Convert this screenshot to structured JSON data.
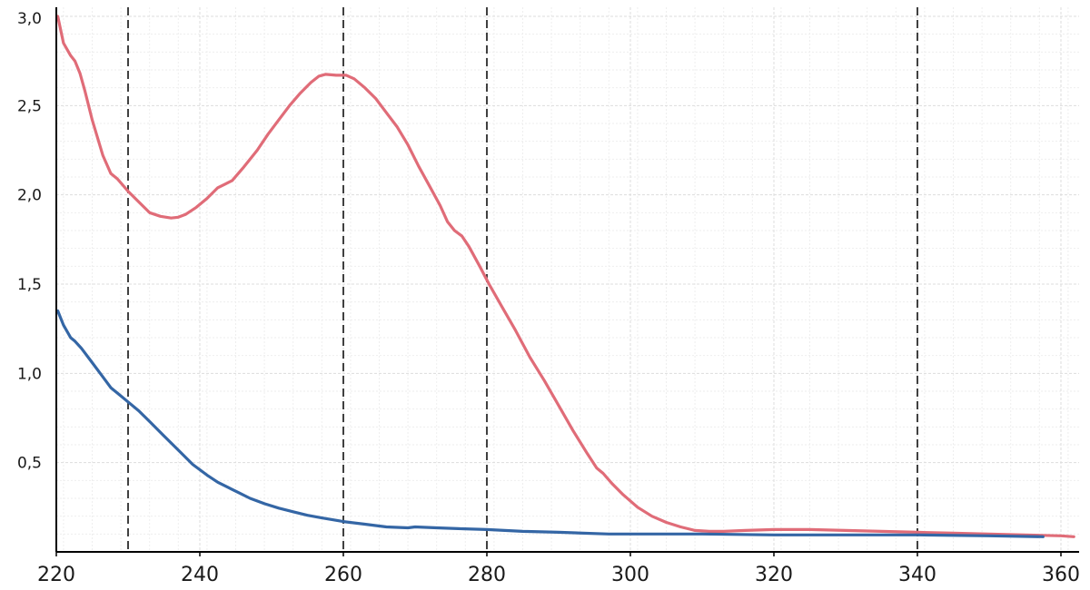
{
  "chart_data": {
    "type": "line",
    "xlim": [
      220,
      360
    ],
    "ylim": [
      0,
      3.0
    ],
    "x_ticks": [
      {
        "value": 220,
        "label": "220"
      },
      {
        "value": 240,
        "label": "240"
      },
      {
        "value": 260,
        "label": "260"
      },
      {
        "value": 280,
        "label": "280"
      },
      {
        "value": 300,
        "label": "300"
      },
      {
        "value": 320,
        "label": "320"
      },
      {
        "value": 340,
        "label": "340"
      },
      {
        "value": 360,
        "label": "360"
      }
    ],
    "y_ticks": [
      {
        "value": 0.5,
        "label": "0,5"
      },
      {
        "value": 1.0,
        "label": "1,0"
      },
      {
        "value": 1.5,
        "label": "1,5"
      },
      {
        "value": 2.0,
        "label": "2,0"
      },
      {
        "value": 2.5,
        "label": "2,5"
      },
      {
        "value": 3.0,
        "label": "3,0"
      }
    ],
    "grid": true,
    "reference_lines_x": [
      230,
      260,
      280,
      340
    ],
    "series": [
      {
        "color": "#e06c78",
        "points": [
          [
            220.2,
            3.0
          ],
          [
            221,
            2.85
          ],
          [
            222,
            2.78
          ],
          [
            222.6,
            2.75
          ],
          [
            223.3,
            2.68
          ],
          [
            224,
            2.58
          ],
          [
            225,
            2.42
          ],
          [
            226.5,
            2.22
          ],
          [
            227.6,
            2.12
          ],
          [
            228.5,
            2.09
          ],
          [
            230,
            2.02
          ],
          [
            231.5,
            1.96
          ],
          [
            233,
            1.9
          ],
          [
            234.5,
            1.88
          ],
          [
            236,
            1.87
          ],
          [
            237,
            1.875
          ],
          [
            238,
            1.89
          ],
          [
            239.5,
            1.93
          ],
          [
            241,
            1.98
          ],
          [
            242.5,
            2.04
          ],
          [
            243.5,
            2.06
          ],
          [
            244.5,
            2.08
          ],
          [
            246,
            2.15
          ],
          [
            248,
            2.25
          ],
          [
            249.5,
            2.34
          ],
          [
            251,
            2.42
          ],
          [
            252.5,
            2.5
          ],
          [
            254,
            2.57
          ],
          [
            255.5,
            2.63
          ],
          [
            256.6,
            2.665
          ],
          [
            257.5,
            2.675
          ],
          [
            259,
            2.67
          ],
          [
            260.4,
            2.67
          ],
          [
            261.5,
            2.65
          ],
          [
            263,
            2.6
          ],
          [
            264.5,
            2.54
          ],
          [
            266,
            2.46
          ],
          [
            267.5,
            2.38
          ],
          [
            269,
            2.28
          ],
          [
            270.5,
            2.16
          ],
          [
            272,
            2.05
          ],
          [
            273.5,
            1.94
          ],
          [
            274.5,
            1.85
          ],
          [
            275.5,
            1.8
          ],
          [
            276.5,
            1.77
          ],
          [
            277.5,
            1.71
          ],
          [
            279,
            1.6
          ],
          [
            280.3,
            1.5
          ],
          [
            282,
            1.38
          ],
          [
            284,
            1.24
          ],
          [
            286,
            1.09
          ],
          [
            288,
            0.96
          ],
          [
            290,
            0.82
          ],
          [
            292,
            0.68
          ],
          [
            294,
            0.55
          ],
          [
            295.3,
            0.47
          ],
          [
            296.2,
            0.44
          ],
          [
            297.5,
            0.38
          ],
          [
            299,
            0.32
          ],
          [
            301,
            0.25
          ],
          [
            303,
            0.2
          ],
          [
            305,
            0.165
          ],
          [
            307,
            0.14
          ],
          [
            309,
            0.12
          ],
          [
            311,
            0.115
          ],
          [
            313,
            0.115
          ],
          [
            316,
            0.12
          ],
          [
            320,
            0.125
          ],
          [
            325,
            0.125
          ],
          [
            330,
            0.12
          ],
          [
            335,
            0.115
          ],
          [
            340,
            0.11
          ],
          [
            345,
            0.105
          ],
          [
            350,
            0.1
          ],
          [
            355,
            0.095
          ],
          [
            360,
            0.09
          ],
          [
            361.8,
            0.085
          ]
        ]
      },
      {
        "color": "#3466a5",
        "points": [
          [
            220.2,
            1.35
          ],
          [
            221,
            1.27
          ],
          [
            222,
            1.2
          ],
          [
            222.6,
            1.18
          ],
          [
            223.5,
            1.14
          ],
          [
            225,
            1.06
          ],
          [
            226.5,
            0.98
          ],
          [
            227.6,
            0.92
          ],
          [
            228.5,
            0.89
          ],
          [
            230,
            0.84
          ],
          [
            231.5,
            0.79
          ],
          [
            233,
            0.73
          ],
          [
            235,
            0.65
          ],
          [
            237,
            0.57
          ],
          [
            239,
            0.49
          ],
          [
            241,
            0.43
          ],
          [
            242.5,
            0.39
          ],
          [
            244,
            0.36
          ],
          [
            245.5,
            0.33
          ],
          [
            247,
            0.3
          ],
          [
            249,
            0.27
          ],
          [
            251,
            0.245
          ],
          [
            253,
            0.225
          ],
          [
            255,
            0.205
          ],
          [
            257,
            0.19
          ],
          [
            260,
            0.17
          ],
          [
            263,
            0.155
          ],
          [
            266,
            0.14
          ],
          [
            269,
            0.135
          ],
          [
            270,
            0.14
          ],
          [
            273,
            0.135
          ],
          [
            276,
            0.13
          ],
          [
            280,
            0.125
          ],
          [
            285,
            0.115
          ],
          [
            290,
            0.11
          ],
          [
            297,
            0.1
          ],
          [
            310,
            0.1
          ],
          [
            320,
            0.095
          ],
          [
            330,
            0.095
          ],
          [
            340,
            0.095
          ],
          [
            350,
            0.09
          ],
          [
            357.5,
            0.085
          ]
        ]
      }
    ]
  }
}
